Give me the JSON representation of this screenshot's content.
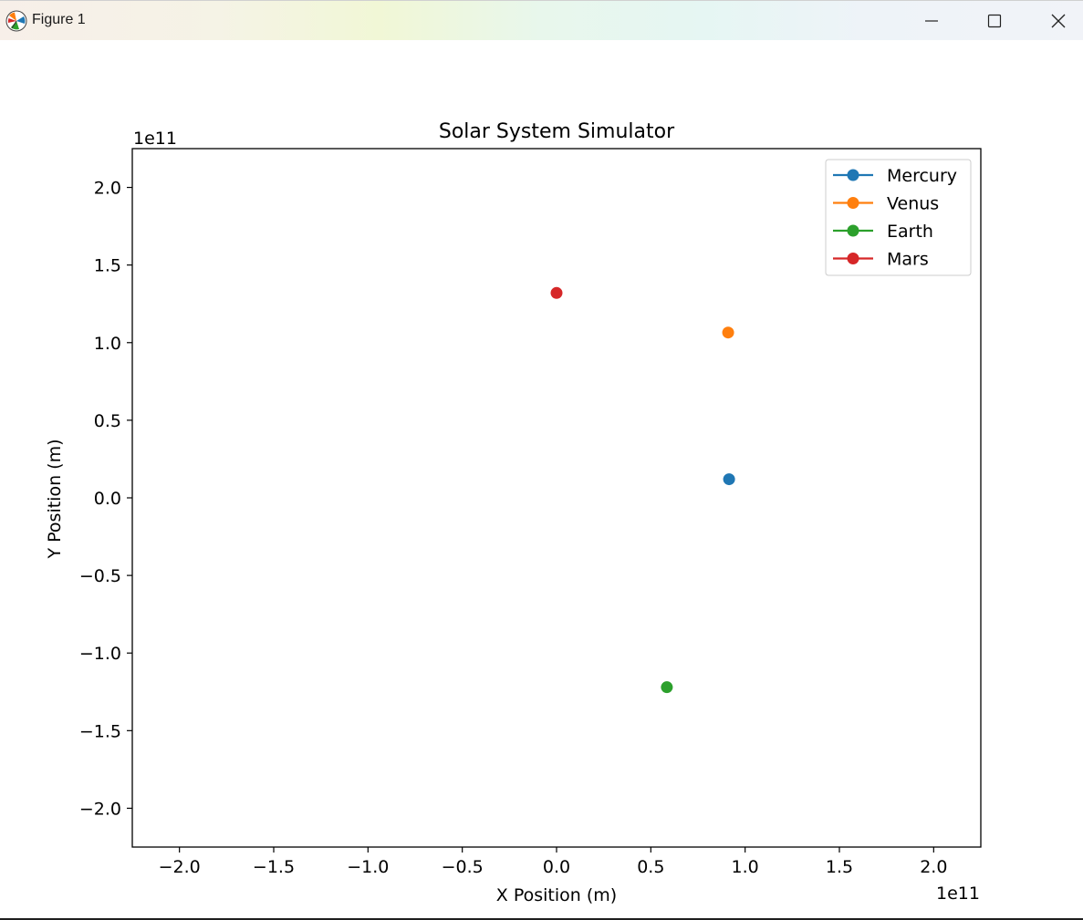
{
  "window": {
    "title": "Figure 1",
    "minimize_icon": "minimize-icon",
    "maximize_icon": "maximize-icon",
    "close_icon": "close-icon",
    "app_icon": "matplotlib-logo-icon"
  },
  "chart_data": {
    "type": "scatter",
    "title": "Solar System Simulator",
    "xlabel": "X Position (m)",
    "ylabel": "Y Position (m)",
    "x_offset_text": "1e11",
    "y_offset_text": "1e11",
    "scale": 100000000000,
    "xlim": [
      -225000000000.0,
      225000000000.0
    ],
    "ylim": [
      -225000000000.0,
      225000000000.0
    ],
    "xticks": [
      -2.0,
      -1.5,
      -1.0,
      -0.5,
      0.0,
      0.5,
      1.0,
      1.5,
      2.0
    ],
    "yticks": [
      -2.0,
      -1.5,
      -1.0,
      -0.5,
      0.0,
      0.5,
      1.0,
      1.5,
      2.0
    ],
    "xtick_labels": [
      "−2.0",
      "−1.5",
      "−1.0",
      "−0.5",
      "0.0",
      "0.5",
      "1.0",
      "1.5",
      "2.0"
    ],
    "ytick_labels": [
      "−2.0",
      "−1.5",
      "−1.0",
      "−0.5",
      "0.0",
      "0.5",
      "1.0",
      "1.5",
      "2.0"
    ],
    "grid": false,
    "legend_position": "top-right",
    "series": [
      {
        "name": "Mercury",
        "color": "#1f77b4",
        "x": [
          91500000000.0
        ],
        "y": [
          12000000000.0
        ]
      },
      {
        "name": "Venus",
        "color": "#ff7f0e",
        "x": [
          91000000000.0
        ],
        "y": [
          106500000000.0
        ]
      },
      {
        "name": "Earth",
        "color": "#2ca02c",
        "x": [
          58500000000.0
        ],
        "y": [
          -122000000000.0
        ]
      },
      {
        "name": "Mars",
        "color": "#d62728",
        "x": [
          0.0
        ],
        "y": [
          132000000000.0
        ]
      }
    ]
  }
}
